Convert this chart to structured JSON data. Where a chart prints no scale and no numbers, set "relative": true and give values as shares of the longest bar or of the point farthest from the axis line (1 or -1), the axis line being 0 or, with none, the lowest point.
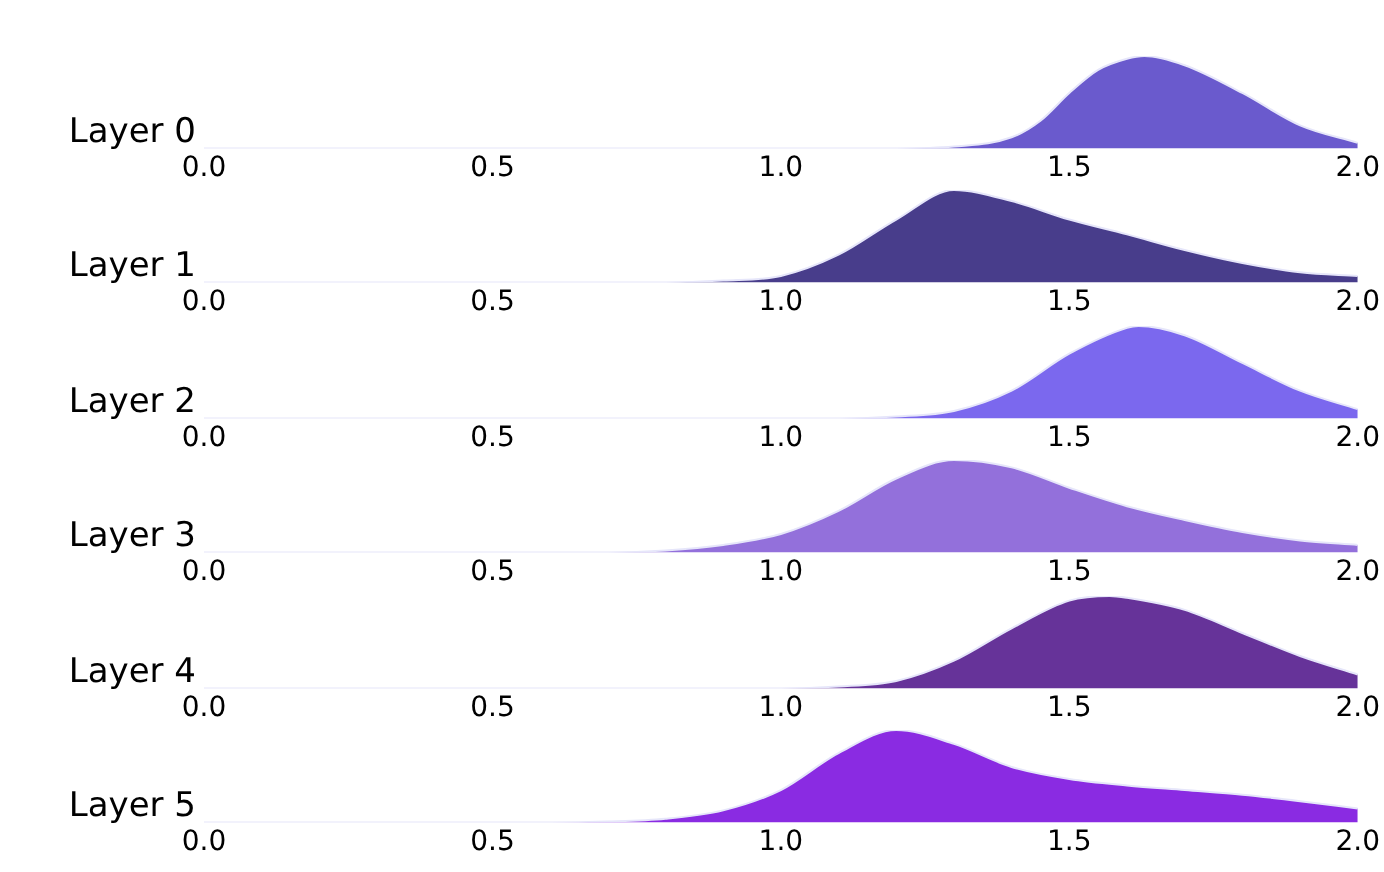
{
  "chart_data": [
    {
      "type": "area",
      "ylabel": "Layer 0",
      "relative": true,
      "xlim": [
        0,
        2
      ],
      "xticks": [
        {
          "value": 0,
          "label": "0.0"
        },
        {
          "value": 0.5,
          "label": "0.5"
        },
        {
          "value": 1,
          "label": "1.0"
        },
        {
          "value": 1.5,
          "label": "1.5"
        },
        {
          "value": 2,
          "label": "2.0"
        }
      ],
      "tick_labels": "x",
      "x": [
        0,
        1.2,
        1.3,
        1.4,
        1.45,
        1.5,
        1.55,
        1.6,
        1.63,
        1.7,
        1.8,
        1.9,
        2.0
      ],
      "series": [
        {
          "color": "#6a5acd",
          "values": [
            0,
            0,
            0.02,
            0.12,
            0.3,
            0.6,
            0.85,
            0.97,
            1,
            0.9,
            0.6,
            0.25,
            0.06
          ]
        }
      ]
    },
    {
      "type": "area",
      "ylabel": "Layer 1",
      "relative": true,
      "xlim": [
        0,
        2
      ],
      "xticks": [
        {
          "value": 0,
          "label": "0.0"
        },
        {
          "value": 0.5,
          "label": "0.5"
        },
        {
          "value": 1,
          "label": "1.0"
        },
        {
          "value": 1.5,
          "label": "1.5"
        },
        {
          "value": 2,
          "label": "2.0"
        }
      ],
      "tick_labels": "x",
      "x": [
        0,
        0.8,
        0.9,
        1.0,
        1.1,
        1.2,
        1.3,
        1.4,
        1.5,
        1.6,
        1.7,
        1.8,
        1.9,
        2.0
      ],
      "series": [
        {
          "color": "#483d8b",
          "values": [
            0,
            0,
            0.02,
            0.07,
            0.3,
            0.68,
            1,
            0.88,
            0.68,
            0.52,
            0.35,
            0.21,
            0.11,
            0.07
          ]
        }
      ]
    },
    {
      "type": "area",
      "ylabel": "Layer 2",
      "relative": true,
      "xlim": [
        0,
        2
      ],
      "xticks": [
        {
          "value": 0,
          "label": "0.0"
        },
        {
          "value": 0.5,
          "label": "0.5"
        },
        {
          "value": 1,
          "label": "1.0"
        },
        {
          "value": 1.5,
          "label": "1.5"
        },
        {
          "value": 2,
          "label": "2.0"
        }
      ],
      "tick_labels": "x",
      "x": [
        0,
        1.1,
        1.2,
        1.3,
        1.4,
        1.5,
        1.6,
        1.62,
        1.7,
        1.8,
        1.9,
        2.0
      ],
      "series": [
        {
          "color": "#7b68ee",
          "values": [
            0,
            0,
            0.02,
            0.08,
            0.3,
            0.7,
            0.98,
            1,
            0.9,
            0.6,
            0.3,
            0.1
          ]
        }
      ]
    },
    {
      "type": "area",
      "ylabel": "Layer 3",
      "relative": true,
      "xlim": [
        0,
        2
      ],
      "xticks": [
        {
          "value": 0,
          "label": "0.0"
        },
        {
          "value": 0.5,
          "label": "0.5"
        },
        {
          "value": 1,
          "label": "1.0"
        },
        {
          "value": 1.5,
          "label": "1.5"
        },
        {
          "value": 2,
          "label": "2.0"
        }
      ],
      "tick_labels": "x",
      "x": [
        0,
        0.7,
        0.8,
        0.9,
        1.0,
        1.1,
        1.2,
        1.3,
        1.4,
        1.5,
        1.6,
        1.7,
        1.8,
        1.9,
        2.0
      ],
      "series": [
        {
          "color": "#9370db",
          "values": [
            0,
            0,
            0.02,
            0.08,
            0.2,
            0.45,
            0.8,
            1,
            0.92,
            0.7,
            0.5,
            0.35,
            0.22,
            0.13,
            0.08
          ]
        }
      ]
    },
    {
      "type": "area",
      "ylabel": "Layer 4",
      "relative": true,
      "xlim": [
        0,
        2
      ],
      "xticks": [
        {
          "value": 0,
          "label": "0.0"
        },
        {
          "value": 0.5,
          "label": "0.5"
        },
        {
          "value": 1,
          "label": "1.0"
        },
        {
          "value": 1.5,
          "label": "1.5"
        },
        {
          "value": 2,
          "label": "2.0"
        }
      ],
      "tick_labels": "x",
      "x": [
        0,
        1.0,
        1.1,
        1.2,
        1.3,
        1.4,
        1.5,
        1.57,
        1.6,
        1.7,
        1.8,
        1.9,
        2.0
      ],
      "series": [
        {
          "color": "#663399",
          "values": [
            0,
            0,
            0.02,
            0.08,
            0.3,
            0.65,
            0.95,
            1,
            0.98,
            0.85,
            0.6,
            0.35,
            0.15
          ]
        }
      ]
    },
    {
      "type": "area",
      "ylabel": "Layer 5",
      "relative": true,
      "xlim": [
        0,
        2
      ],
      "xticks": [
        {
          "value": 0,
          "label": "0.0"
        },
        {
          "value": 0.5,
          "label": "0.5"
        },
        {
          "value": 1,
          "label": "1.0"
        },
        {
          "value": 1.5,
          "label": "1.5"
        },
        {
          "value": 2,
          "label": "2.0"
        }
      ],
      "tick_labels": "x",
      "x": [
        0,
        0.6,
        0.7,
        0.8,
        0.9,
        1.0,
        1.1,
        1.2,
        1.3,
        1.4,
        1.5,
        1.6,
        1.7,
        1.8,
        1.9,
        2.0
      ],
      "series": [
        {
          "color": "#8a2be2",
          "values": [
            0,
            0,
            0.01,
            0.04,
            0.13,
            0.35,
            0.75,
            1,
            0.85,
            0.6,
            0.47,
            0.4,
            0.35,
            0.3,
            0.23,
            0.15
          ]
        }
      ]
    }
  ]
}
